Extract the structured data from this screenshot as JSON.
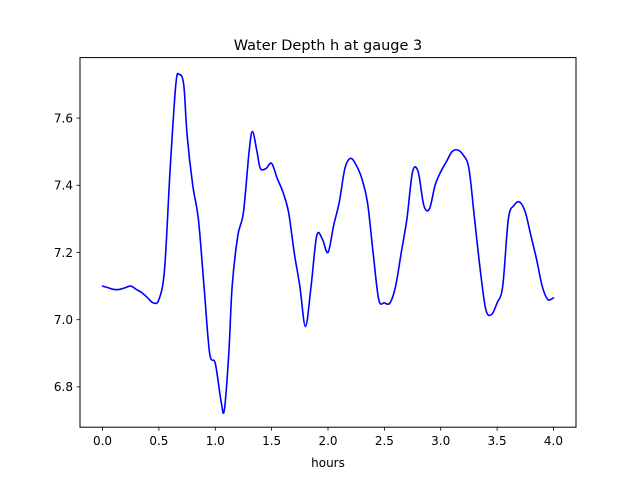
{
  "chart_data": {
    "type": "line",
    "title": "Water Depth h at gauge 3",
    "xlabel": "hours",
    "ylabel": "",
    "xlim": [
      -0.2,
      4.2
    ],
    "ylim": [
      6.68,
      7.78
    ],
    "xticks": [
      0.0,
      0.5,
      1.0,
      1.5,
      2.0,
      2.5,
      3.0,
      3.5,
      4.0
    ],
    "xtick_labels": [
      "0.0",
      "0.5",
      "1.0",
      "1.5",
      "2.0",
      "2.5",
      "3.0",
      "3.5",
      "4.0"
    ],
    "yticks": [
      6.8,
      7.0,
      7.2,
      7.4,
      7.6
    ],
    "ytick_labels": [
      "6.8",
      "7.0",
      "7.2",
      "7.4",
      "7.6"
    ],
    "grid": false,
    "series": [
      {
        "color": "#0000ff",
        "x": [
          0.0,
          0.05,
          0.1,
          0.15,
          0.2,
          0.25,
          0.3,
          0.35,
          0.4,
          0.45,
          0.5,
          0.55,
          0.6,
          0.65,
          0.68,
          0.72,
          0.75,
          0.8,
          0.85,
          0.9,
          0.95,
          1.0,
          1.05,
          1.08,
          1.12,
          1.15,
          1.2,
          1.25,
          1.3,
          1.33,
          1.37,
          1.4,
          1.45,
          1.5,
          1.55,
          1.6,
          1.65,
          1.7,
          1.75,
          1.8,
          1.85,
          1.9,
          1.95,
          2.0,
          2.05,
          2.1,
          2.15,
          2.2,
          2.25,
          2.3,
          2.35,
          2.4,
          2.45,
          2.5,
          2.55,
          2.6,
          2.65,
          2.7,
          2.75,
          2.8,
          2.85,
          2.9,
          2.95,
          3.0,
          3.05,
          3.1,
          3.15,
          3.2,
          3.25,
          3.3,
          3.35,
          3.4,
          3.45,
          3.5,
          3.55,
          3.6,
          3.65,
          3.7,
          3.75,
          3.8,
          3.85,
          3.9,
          3.95,
          4.0
        ],
        "values": [
          7.1,
          7.095,
          7.09,
          7.09,
          7.095,
          7.1,
          7.09,
          7.08,
          7.065,
          7.05,
          7.06,
          7.15,
          7.45,
          7.7,
          7.73,
          7.7,
          7.55,
          7.4,
          7.3,
          7.1,
          6.9,
          6.87,
          6.76,
          6.73,
          6.9,
          7.1,
          7.25,
          7.32,
          7.5,
          7.56,
          7.5,
          7.45,
          7.45,
          7.465,
          7.42,
          7.38,
          7.32,
          7.2,
          7.1,
          6.98,
          7.1,
          7.25,
          7.24,
          7.2,
          7.28,
          7.35,
          7.45,
          7.48,
          7.46,
          7.42,
          7.35,
          7.2,
          7.06,
          7.05,
          7.05,
          7.1,
          7.2,
          7.3,
          7.44,
          7.44,
          7.34,
          7.33,
          7.4,
          7.44,
          7.47,
          7.5,
          7.505,
          7.49,
          7.45,
          7.3,
          7.15,
          7.03,
          7.015,
          7.05,
          7.1,
          7.3,
          7.34,
          7.35,
          7.32,
          7.25,
          7.18,
          7.1,
          7.06,
          7.065
        ]
      }
    ]
  }
}
